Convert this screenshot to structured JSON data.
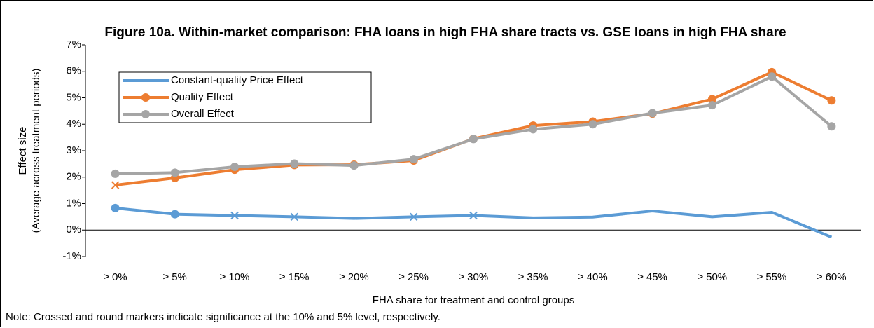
{
  "chart_data": {
    "type": "line",
    "title": "Figure 10a. Within-market comparison: FHA loans in high FHA share tracts vs. GSE loans in high FHA share",
    "x_label": "FHA share for treatment and control groups",
    "y_label": [
      "Effect size",
      "(Average across treatment periods)"
    ],
    "note": "Note: Crossed and round markers indicate significance at the 10% and 5% level, respectively.",
    "categories": [
      "≥ 0%",
      "≥ 5%",
      "≥ 10%",
      "≥ 15%",
      "≥ 20%",
      "≥ 25%",
      "≥ 30%",
      "≥ 35%",
      "≥ 40%",
      "≥ 45%",
      "≥ 50%",
      "≥ 55%",
      "≥ 60%"
    ],
    "series": [
      {
        "name": "Constant-quality Price Effect",
        "color": "#5b9bd5",
        "legend_marker": null,
        "values": [
          0.83,
          0.6,
          0.55,
          0.5,
          0.44,
          0.5,
          0.55,
          0.46,
          0.49,
          0.72,
          0.5,
          0.67,
          -0.27
        ],
        "markers": [
          "circle",
          "circle",
          "cross",
          "cross",
          null,
          "cross",
          "cross",
          null,
          null,
          null,
          null,
          null,
          null
        ]
      },
      {
        "name": "Quality Effect",
        "color": "#ed7d31",
        "legend_marker": "circle",
        "values": [
          1.7,
          1.97,
          2.28,
          2.46,
          2.47,
          2.63,
          3.45,
          3.95,
          4.1,
          4.4,
          4.95,
          5.97,
          4.9
        ],
        "markers": [
          "cross",
          "circle",
          "circle",
          "circle",
          "circle",
          "circle",
          "circle",
          "circle",
          "circle",
          "circle",
          "circle",
          "circle",
          "circle"
        ]
      },
      {
        "name": "Overall Effect",
        "color": "#a5a5a5",
        "legend_marker": "circle",
        "values": [
          2.13,
          2.17,
          2.39,
          2.51,
          2.44,
          2.68,
          3.44,
          3.81,
          4.0,
          4.42,
          4.72,
          5.8,
          3.92
        ],
        "markers": [
          "circle",
          "circle",
          "circle",
          "circle",
          "circle",
          "circle",
          "circle",
          "circle",
          "circle",
          "circle",
          "circle",
          "circle",
          "circle"
        ]
      }
    ],
    "ylim": [
      -1,
      7
    ],
    "yticks": [
      {
        "value": -1,
        "label": "-1%"
      },
      {
        "value": 0,
        "label": "0%"
      },
      {
        "value": 1,
        "label": "1%"
      },
      {
        "value": 2,
        "label": "2%"
      },
      {
        "value": 3,
        "label": "3%"
      },
      {
        "value": 4,
        "label": "4%"
      },
      {
        "value": 5,
        "label": "5%"
      },
      {
        "value": 6,
        "label": "6%"
      },
      {
        "value": 7,
        "label": "7%"
      }
    ],
    "grid": false,
    "legend": "upper left"
  }
}
